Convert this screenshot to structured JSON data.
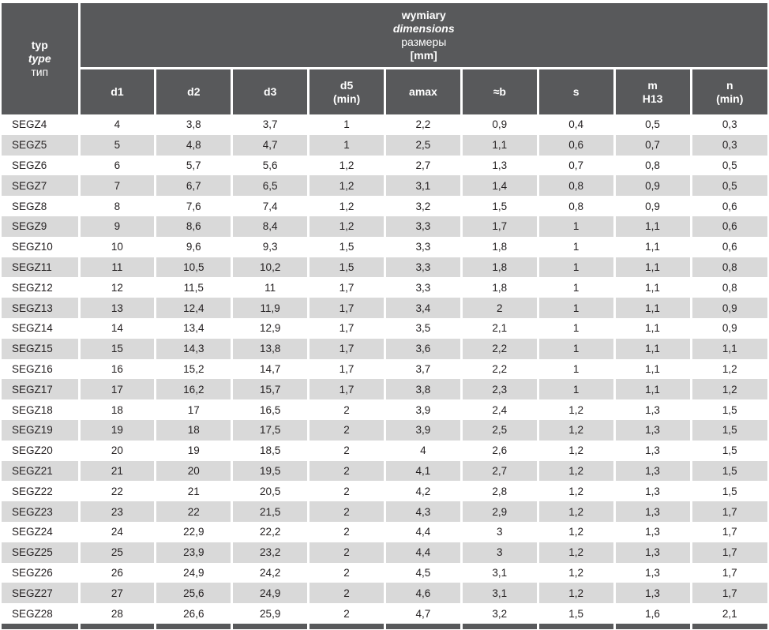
{
  "colors": {
    "header_bg": "#58595b",
    "header_text": "#ffffff",
    "row_bg": "#ffffff",
    "row_alt_bg": "#d9d9d9",
    "cell_text": "#231f20",
    "gridline": "#ffffff"
  },
  "table": {
    "corner": {
      "line1": "typ",
      "line2": "type",
      "line3": "тип"
    },
    "group": {
      "line1": "wymiary",
      "line2": "dimensions",
      "line3": "размеры",
      "line4": "[mm]"
    },
    "columns": [
      {
        "key": "d1",
        "lines": [
          "d1"
        ]
      },
      {
        "key": "d2",
        "lines": [
          "d2"
        ]
      },
      {
        "key": "d3",
        "lines": [
          "d3"
        ]
      },
      {
        "key": "d5-min",
        "lines": [
          "d5",
          "(min)"
        ]
      },
      {
        "key": "amax",
        "lines": [
          "amax"
        ]
      },
      {
        "key": "b-approx",
        "lines": [
          "≈b"
        ]
      },
      {
        "key": "s",
        "lines": [
          "s"
        ]
      },
      {
        "key": "m-h13",
        "lines": [
          "m",
          "H13"
        ]
      },
      {
        "key": "n-min",
        "lines": [
          "n",
          "(min)"
        ]
      }
    ],
    "rows": [
      [
        "SEGZ4",
        "4",
        "3,8",
        "3,7",
        "1",
        "2,2",
        "0,9",
        "0,4",
        "0,5",
        "0,3"
      ],
      [
        "SEGZ5",
        "5",
        "4,8",
        "4,7",
        "1",
        "2,5",
        "1,1",
        "0,6",
        "0,7",
        "0,3"
      ],
      [
        "SEGZ6",
        "6",
        "5,7",
        "5,6",
        "1,2",
        "2,7",
        "1,3",
        "0,7",
        "0,8",
        "0,5"
      ],
      [
        "SEGZ7",
        "7",
        "6,7",
        "6,5",
        "1,2",
        "3,1",
        "1,4",
        "0,8",
        "0,9",
        "0,5"
      ],
      [
        "SEGZ8",
        "8",
        "7,6",
        "7,4",
        "1,2",
        "3,2",
        "1,5",
        "0,8",
        "0,9",
        "0,6"
      ],
      [
        "SEGZ9",
        "9",
        "8,6",
        "8,4",
        "1,2",
        "3,3",
        "1,7",
        "1",
        "1,1",
        "0,6"
      ],
      [
        "SEGZ10",
        "10",
        "9,6",
        "9,3",
        "1,5",
        "3,3",
        "1,8",
        "1",
        "1,1",
        "0,6"
      ],
      [
        "SEGZ11",
        "11",
        "10,5",
        "10,2",
        "1,5",
        "3,3",
        "1,8",
        "1",
        "1,1",
        "0,8"
      ],
      [
        "SEGZ12",
        "12",
        "11,5",
        "11",
        "1,7",
        "3,3",
        "1,8",
        "1",
        "1,1",
        "0,8"
      ],
      [
        "SEGZ13",
        "13",
        "12,4",
        "11,9",
        "1,7",
        "3,4",
        "2",
        "1",
        "1,1",
        "0,9"
      ],
      [
        "SEGZ14",
        "14",
        "13,4",
        "12,9",
        "1,7",
        "3,5",
        "2,1",
        "1",
        "1,1",
        "0,9"
      ],
      [
        "SEGZ15",
        "15",
        "14,3",
        "13,8",
        "1,7",
        "3,6",
        "2,2",
        "1",
        "1,1",
        "1,1"
      ],
      [
        "SEGZ16",
        "16",
        "15,2",
        "14,7",
        "1,7",
        "3,7",
        "2,2",
        "1",
        "1,1",
        "1,2"
      ],
      [
        "SEGZ17",
        "17",
        "16,2",
        "15,7",
        "1,7",
        "3,8",
        "2,3",
        "1",
        "1,1",
        "1,2"
      ],
      [
        "SEGZ18",
        "18",
        "17",
        "16,5",
        "2",
        "3,9",
        "2,4",
        "1,2",
        "1,3",
        "1,5"
      ],
      [
        "SEGZ19",
        "19",
        "18",
        "17,5",
        "2",
        "3,9",
        "2,5",
        "1,2",
        "1,3",
        "1,5"
      ],
      [
        "SEGZ20",
        "20",
        "19",
        "18,5",
        "2",
        "4",
        "2,6",
        "1,2",
        "1,3",
        "1,5"
      ],
      [
        "SEGZ21",
        "21",
        "20",
        "19,5",
        "2",
        "4,1",
        "2,7",
        "1,2",
        "1,3",
        "1,5"
      ],
      [
        "SEGZ22",
        "22",
        "21",
        "20,5",
        "2",
        "4,2",
        "2,8",
        "1,2",
        "1,3",
        "1,5"
      ],
      [
        "SEGZ23",
        "23",
        "22",
        "21,5",
        "2",
        "4,3",
        "2,9",
        "1,2",
        "1,3",
        "1,7"
      ],
      [
        "SEGZ24",
        "24",
        "22,9",
        "22,2",
        "2",
        "4,4",
        "3",
        "1,2",
        "1,3",
        "1,7"
      ],
      [
        "SEGZ25",
        "25",
        "23,9",
        "23,2",
        "2",
        "4,4",
        "3",
        "1,2",
        "1,3",
        "1,7"
      ],
      [
        "SEGZ26",
        "26",
        "24,9",
        "24,2",
        "2",
        "4,5",
        "3,1",
        "1,2",
        "1,3",
        "1,7"
      ],
      [
        "SEGZ27",
        "27",
        "25,6",
        "24,9",
        "2",
        "4,6",
        "3,1",
        "1,2",
        "1,3",
        "1,7"
      ],
      [
        "SEGZ28",
        "28",
        "26,6",
        "25,9",
        "2",
        "4,7",
        "3,2",
        "1,5",
        "1,6",
        "2,1"
      ]
    ]
  }
}
